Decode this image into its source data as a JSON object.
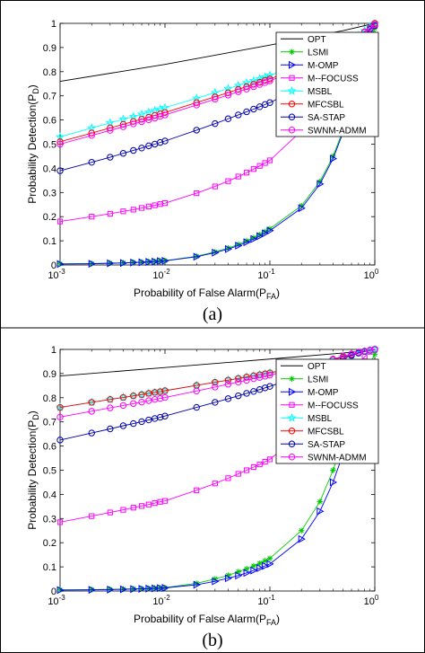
{
  "chart_data": [
    {
      "type": "line",
      "panel_label": "(a)",
      "xscale": "log",
      "xlim": [
        0.001,
        1
      ],
      "ylim": [
        0,
        1
      ],
      "xticks": [
        "10",
        "10",
        "10",
        "10"
      ],
      "xtick_exponents": [
        "-3",
        "-2",
        "-1",
        "0"
      ],
      "yticks": [
        "0",
        "0.1",
        "0.2",
        "0.3",
        "0.4",
        "0.5",
        "0.6",
        "0.7",
        "0.8",
        "0.9",
        "1"
      ],
      "xlabel": "Probability of False Alarm(P",
      "xlabel_sub": "FA",
      "xlabel_end": ")",
      "ylabel": "Probability Detection(P",
      "ylabel_sub": "D",
      "ylabel_end": ")",
      "legend_position": "top-right",
      "grid": false,
      "series": [
        {
          "name": "OPT",
          "color": "#000000",
          "marker": "none",
          "x": [
            0.001,
            0.01,
            0.1,
            0.5,
            1
          ],
          "y": [
            0.76,
            0.83,
            0.91,
            0.97,
            1.0
          ]
        },
        {
          "name": "LSMI",
          "color": "#00cc00",
          "marker": "asterisk",
          "x": [
            0.001,
            0.002,
            0.003,
            0.004,
            0.005,
            0.006,
            0.007,
            0.008,
            0.009,
            0.01,
            0.02,
            0.03,
            0.04,
            0.05,
            0.06,
            0.07,
            0.08,
            0.09,
            0.1,
            0.2,
            0.3,
            0.4,
            0.5,
            0.6,
            0.7,
            0.8,
            0.9,
            1
          ],
          "y": [
            0.005,
            0.006,
            0.008,
            0.009,
            0.011,
            0.012,
            0.014,
            0.015,
            0.017,
            0.018,
            0.036,
            0.054,
            0.07,
            0.085,
            0.1,
            0.113,
            0.126,
            0.138,
            0.15,
            0.245,
            0.345,
            0.45,
            0.56,
            0.67,
            0.77,
            0.86,
            0.93,
            0.98
          ]
        },
        {
          "name": "M-OMP",
          "color": "#0000ff",
          "marker": "triangle-right",
          "x": [
            0.001,
            0.002,
            0.003,
            0.004,
            0.005,
            0.006,
            0.007,
            0.008,
            0.009,
            0.01,
            0.02,
            0.03,
            0.04,
            0.05,
            0.06,
            0.07,
            0.08,
            0.09,
            0.1,
            0.2,
            0.3,
            0.4,
            0.5,
            0.6,
            0.7,
            0.8,
            0.9,
            1
          ],
          "y": [
            0.004,
            0.005,
            0.007,
            0.008,
            0.01,
            0.011,
            0.013,
            0.014,
            0.016,
            0.017,
            0.034,
            0.051,
            0.066,
            0.08,
            0.094,
            0.107,
            0.119,
            0.131,
            0.142,
            0.235,
            0.335,
            0.44,
            0.55,
            0.66,
            0.75,
            0.83,
            0.9,
            0.91
          ]
        },
        {
          "name": "M--FOCUSS",
          "color": "#ff00ff",
          "marker": "square",
          "x": [
            0.001,
            0.002,
            0.003,
            0.004,
            0.005,
            0.006,
            0.007,
            0.008,
            0.009,
            0.01,
            0.02,
            0.03,
            0.04,
            0.05,
            0.06,
            0.07,
            0.08,
            0.09,
            0.1,
            0.2,
            0.3,
            0.4,
            0.5,
            0.6,
            0.7,
            0.8,
            0.9,
            1
          ],
          "y": [
            0.18,
            0.2,
            0.212,
            0.222,
            0.229,
            0.236,
            0.242,
            0.247,
            0.252,
            0.256,
            0.297,
            0.325,
            0.347,
            0.366,
            0.382,
            0.397,
            0.41,
            0.422,
            0.433,
            0.555,
            0.65,
            0.73,
            0.8,
            0.86,
            0.91,
            0.95,
            0.98,
            0.99
          ]
        },
        {
          "name": "MSBL",
          "color": "#00ffff",
          "marker": "star",
          "x": [
            0.001,
            0.002,
            0.003,
            0.004,
            0.005,
            0.006,
            0.007,
            0.008,
            0.009,
            0.01,
            0.02,
            0.03,
            0.04,
            0.05,
            0.06,
            0.07,
            0.08,
            0.09,
            0.1,
            0.2,
            0.3,
            0.4,
            0.5,
            0.6,
            0.7,
            0.8,
            0.9,
            1
          ],
          "y": [
            0.53,
            0.567,
            0.588,
            0.603,
            0.614,
            0.624,
            0.632,
            0.639,
            0.645,
            0.651,
            0.69,
            0.713,
            0.73,
            0.743,
            0.754,
            0.763,
            0.771,
            0.778,
            0.785,
            0.83,
            0.86,
            0.885,
            0.91,
            0.93,
            0.95,
            0.97,
            0.985,
            1.0
          ]
        },
        {
          "name": "MFCSBL",
          "color": "#ff0000",
          "marker": "circle",
          "x": [
            0.001,
            0.002,
            0.003,
            0.004,
            0.005,
            0.006,
            0.007,
            0.008,
            0.009,
            0.01,
            0.02,
            0.03,
            0.04,
            0.05,
            0.06,
            0.07,
            0.08,
            0.09,
            0.1,
            0.2,
            0.3,
            0.4,
            0.5,
            0.6,
            0.7,
            0.8,
            0.9,
            1
          ],
          "y": [
            0.51,
            0.546,
            0.567,
            0.582,
            0.594,
            0.603,
            0.611,
            0.619,
            0.625,
            0.631,
            0.672,
            0.696,
            0.713,
            0.727,
            0.738,
            0.748,
            0.756,
            0.764,
            0.77,
            0.82,
            0.85,
            0.878,
            0.905,
            0.925,
            0.945,
            0.965,
            0.98,
            1.0
          ]
        },
        {
          "name": "SA-STAP",
          "color": "#0000aa",
          "marker": "circle",
          "x": [
            0.001,
            0.002,
            0.003,
            0.004,
            0.005,
            0.006,
            0.007,
            0.008,
            0.009,
            0.01,
            0.02,
            0.03,
            0.04,
            0.05,
            0.06,
            0.07,
            0.08,
            0.09,
            0.1,
            0.2,
            0.3,
            0.4,
            0.5,
            0.6,
            0.7,
            0.8,
            0.9,
            1
          ],
          "y": [
            0.39,
            0.425,
            0.446,
            0.462,
            0.474,
            0.484,
            0.493,
            0.5,
            0.507,
            0.513,
            0.558,
            0.585,
            0.605,
            0.621,
            0.634,
            0.645,
            0.655,
            0.664,
            0.672,
            0.735,
            0.78,
            0.82,
            0.86,
            0.89,
            0.92,
            0.95,
            0.975,
            0.99
          ]
        },
        {
          "name": "SWNM-ADMM",
          "color": "#ff00ff",
          "marker": "circle",
          "x": [
            0.001,
            0.002,
            0.003,
            0.004,
            0.005,
            0.006,
            0.007,
            0.008,
            0.009,
            0.01,
            0.02,
            0.03,
            0.04,
            0.05,
            0.06,
            0.07,
            0.08,
            0.09,
            0.1,
            0.2,
            0.3,
            0.4,
            0.5,
            0.6,
            0.7,
            0.8,
            0.9,
            1
          ],
          "y": [
            0.5,
            0.536,
            0.557,
            0.572,
            0.584,
            0.593,
            0.601,
            0.608,
            0.615,
            0.621,
            0.662,
            0.686,
            0.703,
            0.717,
            0.728,
            0.738,
            0.747,
            0.755,
            0.762,
            0.815,
            0.847,
            0.875,
            0.9,
            0.922,
            0.943,
            0.963,
            0.98,
            0.995
          ]
        }
      ]
    },
    {
      "type": "line",
      "panel_label": "(b)",
      "xscale": "log",
      "xlim": [
        0.001,
        1
      ],
      "ylim": [
        0,
        1
      ],
      "xticks": [
        "10",
        "10",
        "10",
        "10"
      ],
      "xtick_exponents": [
        "-3",
        "-2",
        "-1",
        "0"
      ],
      "yticks": [
        "0",
        "0.1",
        "0.2",
        "0.3",
        "0.4",
        "0.5",
        "0.6",
        "0.7",
        "0.8",
        "0.9",
        "1"
      ],
      "xlabel": "Probability of False Alarm(P",
      "xlabel_sub": "FA",
      "xlabel_end": ")",
      "ylabel": "Probability Detection(P",
      "ylabel_sub": "D",
      "ylabel_end": ")",
      "legend_position": "top-right",
      "grid": false,
      "series": [
        {
          "name": "OPT",
          "color": "#000000",
          "marker": "none",
          "x": [
            0.001,
            0.01,
            0.1,
            0.5,
            1
          ],
          "y": [
            0.89,
            0.925,
            0.96,
            0.985,
            1.0
          ]
        },
        {
          "name": "LSMI",
          "color": "#00cc00",
          "marker": "asterisk",
          "x": [
            0.001,
            0.002,
            0.003,
            0.004,
            0.005,
            0.006,
            0.007,
            0.008,
            0.009,
            0.01,
            0.02,
            0.03,
            0.04,
            0.05,
            0.06,
            0.07,
            0.08,
            0.09,
            0.1,
            0.2,
            0.3,
            0.4,
            0.5,
            0.6,
            0.7,
            0.8,
            0.9,
            1
          ],
          "y": [
            0.005,
            0.006,
            0.007,
            0.008,
            0.009,
            0.01,
            0.011,
            0.012,
            0.013,
            0.014,
            0.032,
            0.05,
            0.065,
            0.08,
            0.092,
            0.104,
            0.115,
            0.125,
            0.135,
            0.25,
            0.37,
            0.5,
            0.62,
            0.73,
            0.82,
            0.89,
            0.94,
            0.98
          ]
        },
        {
          "name": "M-OMP",
          "color": "#0000ff",
          "marker": "triangle-right",
          "x": [
            0.001,
            0.002,
            0.003,
            0.004,
            0.005,
            0.006,
            0.007,
            0.008,
            0.009,
            0.01,
            0.02,
            0.03,
            0.04,
            0.05,
            0.06,
            0.07,
            0.08,
            0.09,
            0.1,
            0.2,
            0.3,
            0.4,
            0.5,
            0.6,
            0.7,
            0.8,
            0.9,
            1
          ],
          "y": [
            0.004,
            0.005,
            0.006,
            0.007,
            0.008,
            0.009,
            0.01,
            0.011,
            0.012,
            0.013,
            0.026,
            0.04,
            0.053,
            0.064,
            0.075,
            0.085,
            0.095,
            0.104,
            0.112,
            0.215,
            0.33,
            0.45,
            0.57,
            0.67,
            0.76,
            0.83,
            0.88,
            0.91
          ]
        },
        {
          "name": "M--FOCUSS",
          "color": "#ff00ff",
          "marker": "square",
          "x": [
            0.001,
            0.002,
            0.003,
            0.004,
            0.005,
            0.006,
            0.007,
            0.008,
            0.009,
            0.01,
            0.02,
            0.03,
            0.04,
            0.05,
            0.06,
            0.07,
            0.08,
            0.09,
            0.1,
            0.2,
            0.3,
            0.4,
            0.5,
            0.6,
            0.7,
            0.8,
            0.9,
            1
          ],
          "y": [
            0.285,
            0.31,
            0.325,
            0.336,
            0.345,
            0.352,
            0.358,
            0.364,
            0.369,
            0.373,
            0.417,
            0.445,
            0.467,
            0.485,
            0.5,
            0.513,
            0.524,
            0.535,
            0.545,
            0.65,
            0.73,
            0.8,
            0.86,
            0.9,
            0.94,
            0.97,
            0.99,
            1.0
          ]
        },
        {
          "name": "MSBL",
          "color": "#00ffff",
          "marker": "star",
          "x": [
            0.001,
            0.002,
            0.003,
            0.004,
            0.005,
            0.006,
            0.007,
            0.008,
            0.009,
            0.01,
            0.02,
            0.03,
            0.04,
            0.05,
            0.06,
            0.07,
            0.08,
            0.09,
            0.1,
            0.2,
            0.3,
            0.4,
            0.5,
            0.6,
            0.7,
            0.8,
            0.9,
            1
          ],
          "y": [
            0.76,
            0.781,
            0.793,
            0.801,
            0.808,
            0.813,
            0.818,
            0.822,
            0.825,
            0.829,
            0.851,
            0.864,
            0.873,
            0.88,
            0.886,
            0.891,
            0.895,
            0.899,
            0.903,
            0.928,
            0.945,
            0.958,
            0.968,
            0.977,
            0.985,
            0.991,
            0.996,
            1.0
          ]
        },
        {
          "name": "MFCSBL",
          "color": "#ff0000",
          "marker": "circle",
          "x": [
            0.001,
            0.002,
            0.003,
            0.004,
            0.005,
            0.006,
            0.007,
            0.008,
            0.009,
            0.01,
            0.02,
            0.03,
            0.04,
            0.05,
            0.06,
            0.07,
            0.08,
            0.09,
            0.1,
            0.2,
            0.3,
            0.4,
            0.5,
            0.6,
            0.7,
            0.8,
            0.9,
            1
          ],
          "y": [
            0.76,
            0.781,
            0.793,
            0.801,
            0.808,
            0.813,
            0.818,
            0.822,
            0.825,
            0.829,
            0.851,
            0.864,
            0.873,
            0.88,
            0.886,
            0.891,
            0.895,
            0.899,
            0.903,
            0.928,
            0.945,
            0.958,
            0.968,
            0.977,
            0.985,
            0.991,
            0.996,
            1.0
          ]
        },
        {
          "name": "SA-STAP",
          "color": "#0000aa",
          "marker": "circle",
          "x": [
            0.001,
            0.002,
            0.003,
            0.004,
            0.005,
            0.006,
            0.007,
            0.008,
            0.009,
            0.01,
            0.02,
            0.03,
            0.04,
            0.05,
            0.06,
            0.07,
            0.08,
            0.09,
            0.1,
            0.2,
            0.3,
            0.4,
            0.5,
            0.6,
            0.7,
            0.8,
            0.9,
            1
          ],
          "y": [
            0.625,
            0.654,
            0.671,
            0.684,
            0.693,
            0.701,
            0.708,
            0.714,
            0.719,
            0.724,
            0.76,
            0.781,
            0.796,
            0.808,
            0.818,
            0.826,
            0.834,
            0.841,
            0.847,
            0.893,
            0.922,
            0.945,
            0.962,
            0.975,
            0.985,
            0.992,
            0.997,
            1.0
          ]
        },
        {
          "name": "SWNM-ADMM",
          "color": "#ff00ff",
          "marker": "circle",
          "x": [
            0.001,
            0.002,
            0.003,
            0.004,
            0.005,
            0.006,
            0.007,
            0.008,
            0.009,
            0.01,
            0.02,
            0.03,
            0.04,
            0.05,
            0.06,
            0.07,
            0.08,
            0.09,
            0.1,
            0.2,
            0.3,
            0.4,
            0.5,
            0.6,
            0.7,
            0.8,
            0.9,
            1
          ],
          "y": [
            0.72,
            0.744,
            0.758,
            0.768,
            0.776,
            0.782,
            0.788,
            0.793,
            0.797,
            0.801,
            0.828,
            0.844,
            0.856,
            0.865,
            0.872,
            0.879,
            0.884,
            0.889,
            0.894,
            0.925,
            0.945,
            0.96,
            0.972,
            0.981,
            0.988,
            0.993,
            0.997,
            1.0
          ]
        }
      ]
    }
  ]
}
